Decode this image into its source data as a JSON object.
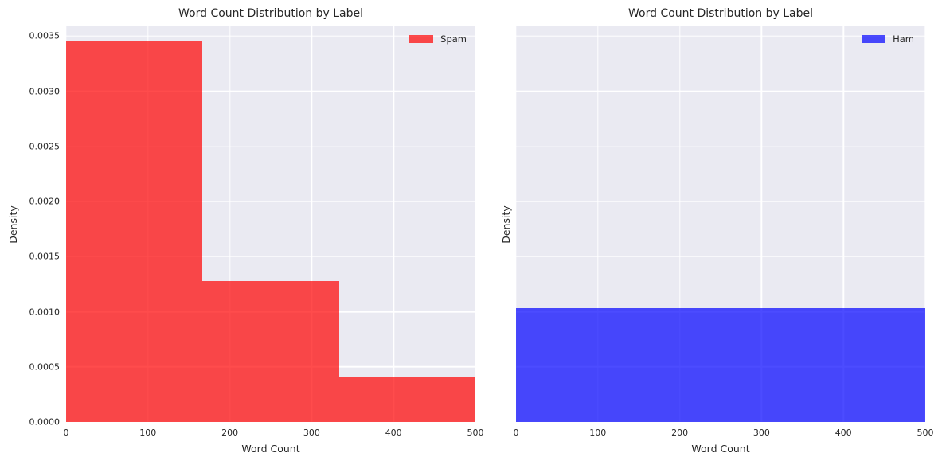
{
  "figure": {
    "background": "#ffffff",
    "plot_background": "#eaeaf2",
    "grid_color": "#ffffff",
    "text_color": "#262626"
  },
  "chart_data": [
    {
      "type": "bar",
      "subtype": "histogram-density",
      "title": "Word Count Distribution by Label",
      "xlabel": "Word Count",
      "ylabel": "Density",
      "legend": {
        "label": "Spam",
        "color": "#ff0000",
        "alpha": 0.7,
        "position": "upper right"
      },
      "xlim": [
        0,
        500
      ],
      "ylim": [
        0,
        0.00359
      ],
      "grid": true,
      "show_ytick_labels": true,
      "xticks": [
        {
          "value": 0,
          "label": "0"
        },
        {
          "value": 100,
          "label": "100"
        },
        {
          "value": 200,
          "label": "200"
        },
        {
          "value": 300,
          "label": "300"
        },
        {
          "value": 400,
          "label": "400"
        },
        {
          "value": 500,
          "label": "500"
        }
      ],
      "yticks": [
        {
          "value": 0.0,
          "label": "0.0000"
        },
        {
          "value": 0.0005,
          "label": "0.0005"
        },
        {
          "value": 0.001,
          "label": "0.0010"
        },
        {
          "value": 0.0015,
          "label": "0.0015"
        },
        {
          "value": 0.002,
          "label": "0.0020"
        },
        {
          "value": 0.0025,
          "label": "0.0025"
        },
        {
          "value": 0.003,
          "label": "0.0030"
        },
        {
          "value": 0.0035,
          "label": "0.0035"
        }
      ],
      "bins": [
        {
          "x0": 0,
          "x1": 166.7,
          "density": 0.00345
        },
        {
          "x0": 166.7,
          "x1": 333.3,
          "density": 0.00128
        },
        {
          "x0": 333.3,
          "x1": 500,
          "density": 0.00041
        }
      ]
    },
    {
      "type": "bar",
      "subtype": "histogram-density",
      "title": "Word Count Distribution by Label",
      "xlabel": "Word Count",
      "ylabel": "Density",
      "legend": {
        "label": "Ham",
        "color": "#0000ff",
        "alpha": 0.7,
        "position": "upper right"
      },
      "xlim": [
        0,
        500
      ],
      "ylim": [
        0,
        0.00359
      ],
      "grid": true,
      "show_ytick_labels": false,
      "xticks": [
        {
          "value": 0,
          "label": "0"
        },
        {
          "value": 100,
          "label": "100"
        },
        {
          "value": 200,
          "label": "200"
        },
        {
          "value": 300,
          "label": "300"
        },
        {
          "value": 400,
          "label": "400"
        },
        {
          "value": 500,
          "label": "500"
        }
      ],
      "yticks": [
        {
          "value": 0.0,
          "label": "0.0000"
        },
        {
          "value": 0.0005,
          "label": "0.0005"
        },
        {
          "value": 0.001,
          "label": "0.0010"
        },
        {
          "value": 0.0015,
          "label": "0.0015"
        },
        {
          "value": 0.002,
          "label": "0.0020"
        },
        {
          "value": 0.0025,
          "label": "0.0025"
        },
        {
          "value": 0.003,
          "label": "0.0030"
        },
        {
          "value": 0.0035,
          "label": "0.0035"
        }
      ],
      "bins": [
        {
          "x0": 0,
          "x1": 500,
          "density": 0.00103
        }
      ]
    }
  ]
}
